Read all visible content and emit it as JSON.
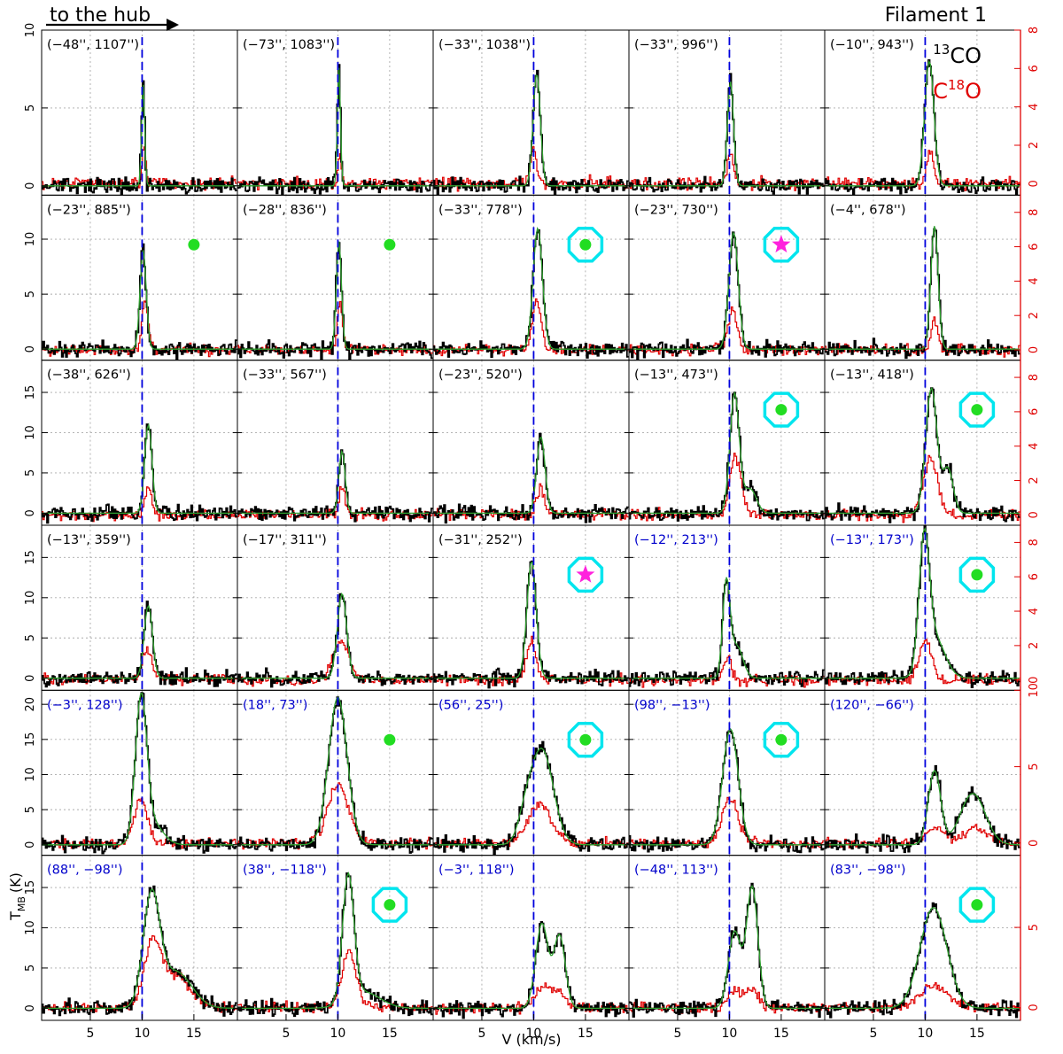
{
  "header": {
    "arrow_label": "to the hub",
    "title": "Filament 1"
  },
  "legend": {
    "line1": {
      "sup": "13",
      "text": "CO",
      "color": "#000000"
    },
    "line2": {
      "pre": "C",
      "sup": "18",
      "text": "O",
      "color": "#e00000"
    }
  },
  "axes": {
    "xlabel": "V (km/s)",
    "ylabel": "T",
    "ylabel_sub": "MB",
    "ylabel_unit": "(K)",
    "x_ticks": [
      "5",
      "10",
      "15"
    ],
    "vlsr_line": 10
  },
  "colors": {
    "co13": "#000000",
    "c18o": "#e00000",
    "fit": "#2fa02f",
    "vline": "#0000dd",
    "grid": "#aaaaaa",
    "label_black": "#000000",
    "label_blue": "#0000cc",
    "dot": "#22dd22",
    "ring": "#00e5ee",
    "star": "#ff22dd"
  },
  "chart_data": {
    "type": "line",
    "xlim": [
      0.3,
      19.2
    ],
    "rows": [
      {
        "left_ylim": [
          -0.6,
          10
        ],
        "left_ticks": [
          "0",
          "5",
          "10"
        ],
        "right_ylim": [
          -0.6,
          8
        ],
        "right_ticks": [
          "0",
          "2",
          "4",
          "6",
          "8"
        ]
      },
      {
        "left_ylim": [
          -1,
          14
        ],
        "left_ticks": [
          "0",
          "5",
          "10"
        ],
        "right_ylim": [
          -0.6,
          9
        ],
        "right_ticks": [
          "0",
          "2",
          "4",
          "6",
          "8"
        ]
      },
      {
        "left_ylim": [
          -1.5,
          19
        ],
        "left_ticks": [
          "0",
          "5",
          "10",
          "15"
        ],
        "right_ylim": [
          -0.6,
          9
        ],
        "right_ticks": [
          "0",
          "2",
          "4",
          "6",
          "8"
        ]
      },
      {
        "left_ylim": [
          -1.5,
          19
        ],
        "left_ticks": [
          "0",
          "5",
          "10",
          "15"
        ],
        "right_ylim": [
          -0.6,
          9
        ],
        "right_ticks": [
          "0",
          "2",
          "4",
          "6",
          "8"
        ]
      },
      {
        "left_ylim": [
          -1.5,
          22
        ],
        "left_ticks": [
          "0",
          "5",
          "10",
          "15",
          "20"
        ],
        "right_ylim": [
          -0.8,
          10
        ],
        "right_ticks": [
          "0",
          "5",
          "10"
        ]
      },
      {
        "left_ylim": [
          -1.5,
          19
        ],
        "left_ticks": [
          "0",
          "5",
          "10",
          "15"
        ],
        "right_ylim": [
          -0.8,
          9.5
        ],
        "right_ticks": [
          "0",
          "5"
        ]
      }
    ],
    "panels": [
      {
        "label": "(−48'', 1107'')",
        "label_color": "black",
        "marker": "none",
        "co13": [
          {
            "v": 10.1,
            "s": 0.15,
            "a": 6.5
          }
        ],
        "c18o": [
          {
            "v": 10.2,
            "s": 0.15,
            "a": 2.2
          }
        ]
      },
      {
        "label": "(−73'', 1083'')",
        "label_color": "black",
        "marker": "none",
        "co13": [
          {
            "v": 10.1,
            "s": 0.15,
            "a": 7.6
          }
        ],
        "c18o": [
          {
            "v": 10.2,
            "s": 0.15,
            "a": 1.6
          }
        ]
      },
      {
        "label": "(−33'', 1038'')",
        "label_color": "black",
        "marker": "none",
        "co13": [
          {
            "v": 10.3,
            "s": 0.35,
            "a": 7.2
          }
        ],
        "c18o": [
          {
            "v": 10.0,
            "s": 0.3,
            "a": 1.8
          }
        ]
      },
      {
        "label": "(−33'', 996'')",
        "label_color": "black",
        "marker": "none",
        "co13": [
          {
            "v": 10.1,
            "s": 0.3,
            "a": 6.7
          }
        ],
        "c18o": [
          {
            "v": 10.1,
            "s": 0.3,
            "a": 1.5
          }
        ]
      },
      {
        "label": "(−10'', 943'')",
        "label_color": "black",
        "marker": "none",
        "co13": [
          {
            "v": 10.4,
            "s": 0.45,
            "a": 8.0
          }
        ],
        "c18o": [
          {
            "v": 10.5,
            "s": 0.35,
            "a": 1.7
          }
        ]
      },
      {
        "label": "(−23'', 885'')",
        "label_color": "black",
        "marker": "dot",
        "co13": [
          {
            "v": 10.1,
            "s": 0.3,
            "a": 9.0
          }
        ],
        "c18o": [
          {
            "v": 10.3,
            "s": 0.3,
            "a": 2.8
          }
        ]
      },
      {
        "label": "(−28'', 836'')",
        "label_color": "black",
        "marker": "dot",
        "co13": [
          {
            "v": 10.1,
            "s": 0.25,
            "a": 9.8
          }
        ],
        "c18o": [
          {
            "v": 10.2,
            "s": 0.25,
            "a": 2.8
          }
        ]
      },
      {
        "label": "(−33'', 778'')",
        "label_color": "black",
        "marker": "ring",
        "co13": [
          {
            "v": 10.4,
            "s": 0.45,
            "a": 11.0
          }
        ],
        "c18o": [
          {
            "v": 10.3,
            "s": 0.4,
            "a": 3.0
          }
        ]
      },
      {
        "label": "(−23'', 730'')",
        "label_color": "black",
        "marker": "star",
        "co13": [
          {
            "v": 10.4,
            "s": 0.45,
            "a": 10.6
          }
        ],
        "c18o": [
          {
            "v": 10.3,
            "s": 0.45,
            "a": 2.3
          }
        ]
      },
      {
        "label": "(−4'', 678'')",
        "label_color": "black",
        "marker": "none",
        "co13": [
          {
            "v": 10.9,
            "s": 0.35,
            "a": 11.2
          }
        ],
        "c18o": [
          {
            "v": 10.9,
            "s": 0.3,
            "a": 1.8
          }
        ]
      },
      {
        "label": "(−38'', 626'')",
        "label_color": "black",
        "marker": "none",
        "co13": [
          {
            "v": 10.6,
            "s": 0.35,
            "a": 11.0
          }
        ],
        "c18o": [
          {
            "v": 10.6,
            "s": 0.3,
            "a": 1.7
          }
        ]
      },
      {
        "label": "(−33'', 567'')",
        "label_color": "black",
        "marker": "none",
        "co13": [
          {
            "v": 10.4,
            "s": 0.3,
            "a": 7.7
          }
        ],
        "c18o": [
          {
            "v": 10.4,
            "s": 0.3,
            "a": 1.5
          }
        ]
      },
      {
        "label": "(−23'', 520'')",
        "label_color": "black",
        "marker": "none",
        "co13": [
          {
            "v": 10.7,
            "s": 0.4,
            "a": 9.5
          }
        ],
        "c18o": [
          {
            "v": 10.7,
            "s": 0.35,
            "a": 1.7
          }
        ]
      },
      {
        "label": "(−13'', 473'')",
        "label_color": "black",
        "marker": "ring",
        "co13": [
          {
            "v": 10.5,
            "s": 0.45,
            "a": 14.8
          },
          {
            "v": 12.0,
            "s": 0.6,
            "a": 3.0
          }
        ],
        "c18o": [
          {
            "v": 10.6,
            "s": 0.55,
            "a": 3.4
          }
        ]
      },
      {
        "label": "(−13'', 418'')",
        "label_color": "black",
        "marker": "ring",
        "co13": [
          {
            "v": 10.6,
            "s": 0.55,
            "a": 15.5
          },
          {
            "v": 12.2,
            "s": 0.5,
            "a": 5.5
          }
        ],
        "c18o": [
          {
            "v": 10.5,
            "s": 0.7,
            "a": 3.3
          }
        ]
      },
      {
        "label": "(−13'', 359'')",
        "label_color": "black",
        "marker": "none",
        "co13": [
          {
            "v": 10.6,
            "s": 0.4,
            "a": 9.0
          }
        ],
        "c18o": [
          {
            "v": 10.5,
            "s": 0.5,
            "a": 1.8
          }
        ]
      },
      {
        "label": "(−17'', 311'')",
        "label_color": "black",
        "marker": "none",
        "co13": [
          {
            "v": 10.4,
            "s": 0.45,
            "a": 10.5
          }
        ],
        "c18o": [
          {
            "v": 10.3,
            "s": 0.8,
            "a": 2.3
          }
        ]
      },
      {
        "label": "(−31'', 252'')",
        "label_color": "black",
        "marker": "star",
        "co13": [
          {
            "v": 9.8,
            "s": 0.45,
            "a": 14.5
          }
        ],
        "c18o": [
          {
            "v": 9.8,
            "s": 0.45,
            "a": 2.4
          }
        ]
      },
      {
        "label": "(−12'', 213'')",
        "label_color": "blue",
        "marker": "none",
        "co13": [
          {
            "v": 9.7,
            "s": 0.35,
            "a": 11.5
          },
          {
            "v": 10.7,
            "s": 0.6,
            "a": 4.0
          }
        ],
        "c18o": [
          {
            "v": 9.8,
            "s": 0.35,
            "a": 1.3
          }
        ]
      },
      {
        "label": "(−13'', 173'')",
        "label_color": "blue",
        "marker": "ring",
        "co13": [
          {
            "v": 9.9,
            "s": 0.5,
            "a": 15.5
          },
          {
            "v": 10.9,
            "s": 1.0,
            "a": 5.0
          }
        ],
        "c18o": [
          {
            "v": 10.0,
            "s": 0.6,
            "a": 2.3
          }
        ]
      },
      {
        "label": "(−3'', 128'')",
        "label_color": "blue",
        "marker": "none",
        "co13": [
          {
            "v": 9.9,
            "s": 0.55,
            "a": 20.0
          },
          {
            "v": 11.0,
            "s": 1.0,
            "a": 3.0
          }
        ],
        "c18o": [
          {
            "v": 9.9,
            "s": 0.6,
            "a": 3.0
          }
        ]
      },
      {
        "label": "(18'', 73'')",
        "label_color": "blue",
        "marker": "dot",
        "co13": [
          {
            "v": 10.0,
            "s": 0.9,
            "a": 21.0
          }
        ],
        "c18o": [
          {
            "v": 10.0,
            "s": 1.0,
            "a": 3.8
          }
        ]
      },
      {
        "label": "(56'', 25'')",
        "label_color": "blue",
        "marker": "ring",
        "co13": [
          {
            "v": 10.8,
            "s": 1.1,
            "a": 13.5
          },
          {
            "v": 9.2,
            "s": 0.7,
            "a": 3.0
          }
        ],
        "c18o": [
          {
            "v": 10.6,
            "s": 1.1,
            "a": 2.5
          }
        ]
      },
      {
        "label": "(98'', −13'')",
        "label_color": "blue",
        "marker": "ring",
        "co13": [
          {
            "v": 10.1,
            "s": 0.75,
            "a": 16.5
          }
        ],
        "c18o": [
          {
            "v": 10.1,
            "s": 0.75,
            "a": 3.0
          }
        ]
      },
      {
        "label": "(120'', −66'')",
        "label_color": "blue",
        "marker": "none",
        "co13": [
          {
            "v": 10.9,
            "s": 0.6,
            "a": 10.5
          },
          {
            "v": 14.6,
            "s": 1.2,
            "a": 7.3
          }
        ],
        "c18o": [
          {
            "v": 11.0,
            "s": 0.9,
            "a": 1.0
          },
          {
            "v": 14.8,
            "s": 1.2,
            "a": 1.0
          }
        ]
      },
      {
        "label": "(88'', −98'')",
        "label_color": "blue",
        "marker": "none",
        "co13": [
          {
            "v": 10.9,
            "s": 0.8,
            "a": 13.5
          },
          {
            "v": 13.3,
            "s": 1.5,
            "a": 4.5
          }
        ],
        "c18o": [
          {
            "v": 11.0,
            "s": 0.8,
            "a": 3.6
          },
          {
            "v": 13.2,
            "s": 1.5,
            "a": 2.0
          }
        ]
      },
      {
        "label": "(38'', −118'')",
        "label_color": "blue",
        "marker": "ring",
        "co13": [
          {
            "v": 11.0,
            "s": 0.55,
            "a": 15.5
          },
          {
            "v": 12.5,
            "s": 1.6,
            "a": 2.0
          }
        ],
        "c18o": [
          {
            "v": 11.1,
            "s": 0.7,
            "a": 3.5
          }
        ]
      },
      {
        "label": "(−3'', 118'')",
        "label_color": "blue",
        "marker": "none",
        "co13": [
          {
            "v": 10.8,
            "s": 0.6,
            "a": 10.5
          },
          {
            "v": 12.5,
            "s": 0.55,
            "a": 9.0
          }
        ],
        "c18o": [
          {
            "v": 10.8,
            "s": 0.7,
            "a": 1.2
          },
          {
            "v": 12.4,
            "s": 0.6,
            "a": 1.0
          }
        ]
      },
      {
        "label": "(−48'', 113'')",
        "label_color": "blue",
        "marker": "none",
        "co13": [
          {
            "v": 10.5,
            "s": 0.6,
            "a": 9.5
          },
          {
            "v": 12.2,
            "s": 0.55,
            "a": 15.0
          }
        ],
        "c18o": [
          {
            "v": 10.6,
            "s": 0.7,
            "a": 1.0
          },
          {
            "v": 12.3,
            "s": 0.6,
            "a": 1.0
          }
        ]
      },
      {
        "label": "(83'', −98'')",
        "label_color": "blue",
        "marker": "ring",
        "co13": [
          {
            "v": 10.8,
            "s": 1.3,
            "a": 12.5
          }
        ],
        "c18o": [
          {
            "v": 10.8,
            "s": 1.3,
            "a": 1.4
          }
        ]
      }
    ]
  }
}
